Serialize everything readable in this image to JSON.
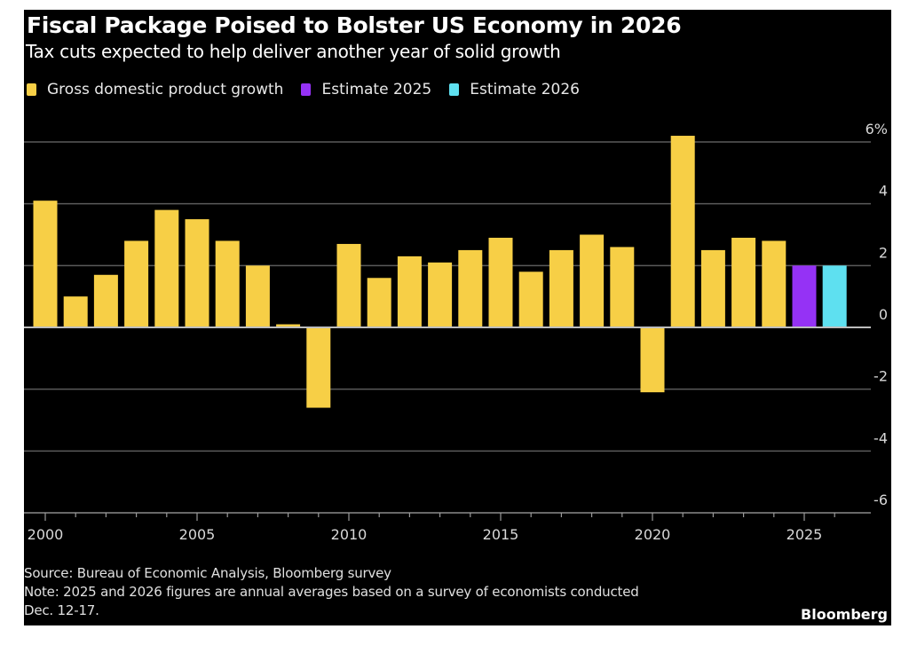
{
  "header": {
    "title": "Fiscal Package Poised to Bolster US Economy in 2026",
    "subtitle": "Tax cuts expected to help deliver another year of solid growth"
  },
  "legend": [
    {
      "label": "Gross domestic product growth",
      "color": "#f7cf46"
    },
    {
      "label": "Estimate 2025",
      "color": "#9532f5"
    },
    {
      "label": "Estimate 2026",
      "color": "#5ee0f0"
    }
  ],
  "footer": {
    "source": "Source: Bureau of Economic Analysis, Bloomberg survey",
    "note_line1": "Note: 2025 and 2026 figures are annual averages based on a survey of economists conducted",
    "note_line2": "Dec. 12-17.",
    "brand": "Bloomberg"
  },
  "chart_data": {
    "type": "bar",
    "title": "Fiscal Package Poised to Bolster US Economy in 2026",
    "subtitle": "Tax cuts expected to help deliver another year of solid growth",
    "xlabel": "",
    "ylabel": "",
    "ylim": [
      -6,
      6
    ],
    "yticks": [
      6,
      4,
      2,
      0,
      -2,
      -4,
      -6
    ],
    "ytick_labels": [
      "6%",
      "4",
      "2",
      "0",
      "-2",
      "-4",
      "-6"
    ],
    "xticks": [
      2000,
      2005,
      2010,
      2015,
      2020,
      2025
    ],
    "xtick_labels": [
      "2000",
      "2005",
      "2010",
      "2015",
      "2020",
      "2025"
    ],
    "grid": true,
    "legend_position": "top-left",
    "categories": [
      "2000",
      "2001",
      "2002",
      "2003",
      "2004",
      "2005",
      "2006",
      "2007",
      "2008",
      "2009",
      "2010",
      "2011",
      "2012",
      "2013",
      "2014",
      "2015",
      "2016",
      "2017",
      "2018",
      "2019",
      "2020",
      "2021",
      "2022",
      "2023",
      "2024",
      "2025",
      "2026"
    ],
    "series": [
      {
        "name": "Gross domestic product growth",
        "color": "#f7cf46",
        "values": [
          4.1,
          1.0,
          1.7,
          2.8,
          3.8,
          3.5,
          2.8,
          2.0,
          0.1,
          -2.6,
          2.7,
          1.6,
          2.3,
          2.1,
          2.5,
          2.9,
          1.8,
          2.5,
          3.0,
          2.6,
          -2.1,
          6.2,
          2.5,
          2.9,
          2.8,
          null,
          null
        ]
      },
      {
        "name": "Estimate 2025",
        "color": "#9532f5",
        "values": [
          null,
          null,
          null,
          null,
          null,
          null,
          null,
          null,
          null,
          null,
          null,
          null,
          null,
          null,
          null,
          null,
          null,
          null,
          null,
          null,
          null,
          null,
          null,
          null,
          null,
          2.0,
          null
        ]
      },
      {
        "name": "Estimate 2026",
        "color": "#5ee0f0",
        "values": [
          null,
          null,
          null,
          null,
          null,
          null,
          null,
          null,
          null,
          null,
          null,
          null,
          null,
          null,
          null,
          null,
          null,
          null,
          null,
          null,
          null,
          null,
          null,
          null,
          null,
          null,
          2.0
        ]
      }
    ]
  }
}
